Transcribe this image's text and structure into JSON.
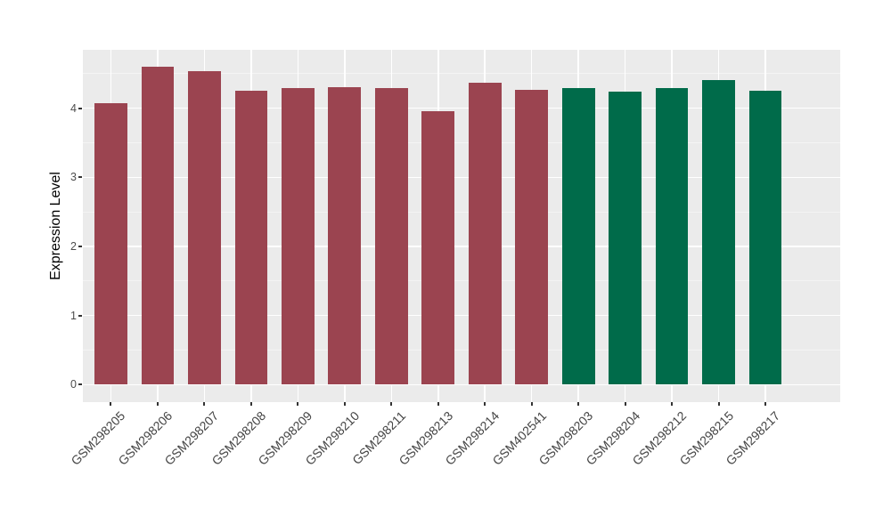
{
  "chart_data": {
    "type": "bar",
    "title": "",
    "xlabel": "",
    "ylabel": "Expression Level",
    "categories": [
      "GSM298205",
      "GSM298206",
      "GSM298207",
      "GSM298208",
      "GSM298209",
      "GSM298210",
      "GSM298211",
      "GSM298213",
      "GSM298214",
      "GSM402541",
      "GSM298203",
      "GSM298204",
      "GSM298212",
      "GSM298215",
      "GSM298217"
    ],
    "values": [
      4.07,
      4.6,
      4.54,
      4.26,
      4.29,
      4.31,
      4.29,
      3.96,
      4.37,
      4.27,
      4.29,
      4.24,
      4.29,
      4.41,
      4.26
    ],
    "groups": [
      "A",
      "A",
      "A",
      "A",
      "A",
      "A",
      "A",
      "A",
      "A",
      "A",
      "B",
      "B",
      "B",
      "B",
      "B"
    ],
    "group_colors": {
      "A": "#9B4450",
      "B": "#006B4A"
    },
    "yticks": [
      0,
      1,
      2,
      3,
      4
    ],
    "minor_yticks": [
      0.5,
      1.5,
      2.5,
      3.5,
      4.5
    ],
    "ylim": [
      -0.25,
      4.85
    ],
    "bar_width_ratio": 0.7,
    "grid": true,
    "legend_position": "none",
    "colors": {
      "panel_background": "#EBEBEB",
      "major_grid": "#FFFFFF",
      "minor_grid": "#F4F4F4",
      "axis_text": "#4D4D4D",
      "x_axis_text": "#444444",
      "axis_title": "#000000",
      "tick_marks": "#333333"
    }
  }
}
